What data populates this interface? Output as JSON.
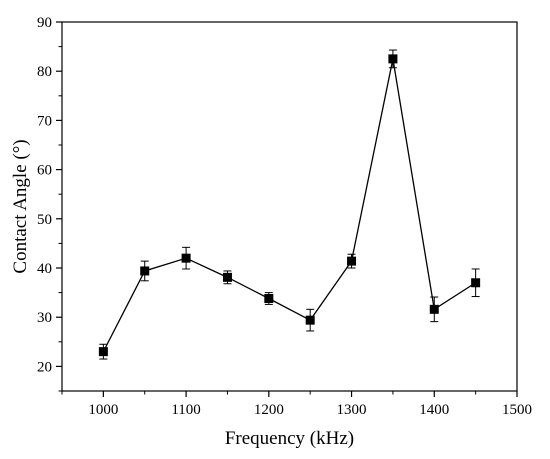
{
  "chart_data": {
    "type": "line",
    "title": "",
    "xlabel": "Frequency (kHz)",
    "ylabel": "Contact Angle (°)",
    "xlim": [
      950,
      1500
    ],
    "ylim": [
      15,
      90
    ],
    "x_ticks": [
      1000,
      1100,
      1200,
      1300,
      1400,
      1500
    ],
    "y_ticks": [
      20,
      30,
      40,
      50,
      60,
      70,
      80,
      90
    ],
    "grid": false,
    "legend": "none",
    "marker": "filled-square",
    "line_color": "#000000",
    "series": [
      {
        "x": [
          1000,
          1050,
          1100,
          1150,
          1200,
          1250,
          1300,
          1350,
          1400,
          1450
        ],
        "y": [
          23.0,
          39.4,
          42.0,
          38.1,
          33.8,
          29.4,
          41.4,
          82.5,
          31.6,
          37.0
        ],
        "error": [
          1.5,
          2.0,
          2.2,
          1.3,
          1.2,
          2.2,
          1.4,
          1.8,
          2.5,
          2.8
        ]
      }
    ]
  }
}
